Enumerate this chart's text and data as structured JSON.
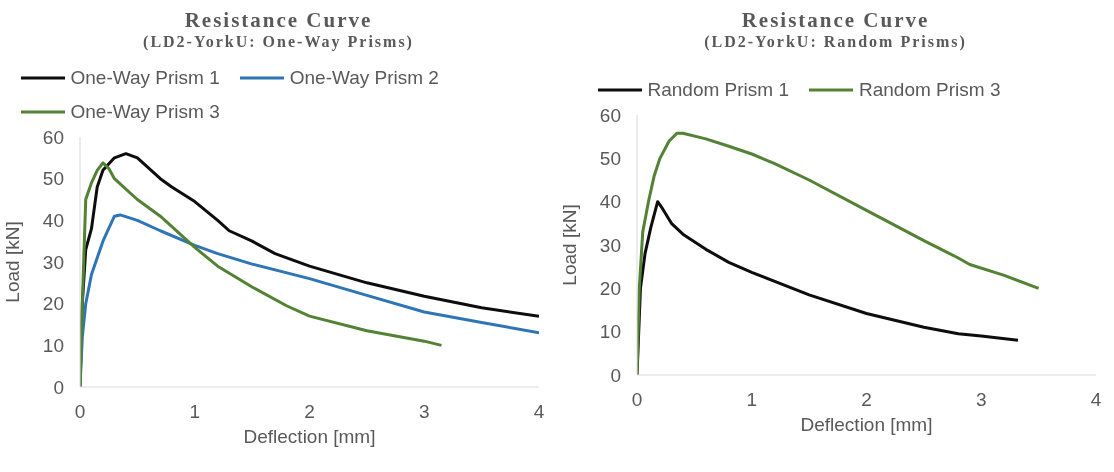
{
  "chart_data": [
    {
      "type": "line",
      "title": "Resistance Curve",
      "subtitle": "(LD2-YorkU: One-Way Prisms)",
      "xlabel": "Deflection [mm]",
      "ylabel": "Load [kN]",
      "xlim": [
        0,
        4
      ],
      "xticks": [
        0,
        1,
        2,
        3,
        4
      ],
      "ylim": [
        0,
        60
      ],
      "yticks": [
        0,
        10,
        20,
        30,
        40,
        50,
        60
      ],
      "grid": false,
      "legend": "top",
      "marker": "none",
      "series": [
        {
          "name": "One-Way Prism 1",
          "color": "#0d0d0d",
          "x": [
            0,
            0.02,
            0.05,
            0.1,
            0.15,
            0.2,
            0.3,
            0.4,
            0.5,
            0.7,
            0.8,
            1,
            1.2,
            1.3,
            1.5,
            1.7,
            2,
            2.5,
            3,
            3.5,
            4
          ],
          "values": [
            0,
            20,
            33,
            38,
            48,
            52,
            55,
            56,
            55,
            50,
            48,
            44.5,
            40,
            37.5,
            35,
            32,
            29,
            25,
            21.8,
            19,
            17
          ]
        },
        {
          "name": "One-Way Prism 2",
          "color": "#2e75b6",
          "x": [
            0,
            0.02,
            0.05,
            0.1,
            0.2,
            0.3,
            0.35,
            0.5,
            0.7,
            1,
            1.2,
            1.5,
            2,
            2.5,
            3,
            3.5,
            4
          ],
          "values": [
            0,
            12,
            20,
            27,
            35,
            41,
            41.3,
            40,
            37.5,
            34,
            32,
            29.5,
            26,
            22,
            18,
            15.5,
            13
          ]
        },
        {
          "name": "One-Way Prism 3",
          "color": "#548235",
          "x": [
            0,
            0.02,
            0.05,
            0.1,
            0.15,
            0.2,
            0.25,
            0.3,
            0.4,
            0.5,
            0.7,
            1,
            1.2,
            1.5,
            1.8,
            2,
            2.5,
            3,
            3.15
          ],
          "values": [
            0,
            20,
            45,
            49,
            52,
            53.8,
            52.5,
            50,
            47.5,
            45,
            41,
            33.5,
            29,
            24,
            19.5,
            17,
            13.5,
            11,
            10
          ]
        }
      ]
    },
    {
      "type": "line",
      "title": "Resistance Curve",
      "subtitle": "(LD2-YorkU: Random Prisms)",
      "xlabel": "Deflection [mm]",
      "ylabel": "Load [kN]",
      "xlim": [
        0,
        4
      ],
      "xticks": [
        0,
        1,
        2,
        3,
        4
      ],
      "ylim": [
        0,
        60
      ],
      "yticks": [
        0,
        10,
        20,
        30,
        40,
        50,
        60
      ],
      "grid": false,
      "legend": "top",
      "marker": "none",
      "series": [
        {
          "name": "Random Prism 1",
          "color": "#0d0d0d",
          "x": [
            0,
            0.03,
            0.07,
            0.12,
            0.18,
            0.22,
            0.3,
            0.4,
            0.6,
            0.8,
            1,
            1.5,
            2,
            2.5,
            2.8,
            3,
            3.32
          ],
          "values": [
            0,
            20,
            28,
            34,
            40,
            38.5,
            35,
            32.5,
            29,
            26,
            23.7,
            18.5,
            14.2,
            11,
            9.5,
            9,
            8
          ]
        },
        {
          "name": "Random Prism 3",
          "color": "#548235",
          "x": [
            0,
            0.02,
            0.05,
            0.1,
            0.15,
            0.2,
            0.28,
            0.35,
            0.4,
            0.6,
            0.8,
            1,
            1.2,
            1.5,
            2,
            2.5,
            2.8,
            2.9,
            3.2,
            3.5
          ],
          "values": [
            0,
            20,
            33,
            40,
            46,
            50,
            54,
            55.8,
            55.8,
            54.5,
            52.8,
            51,
            48.8,
            45,
            38,
            31,
            27,
            25.5,
            23,
            20
          ]
        }
      ]
    }
  ]
}
